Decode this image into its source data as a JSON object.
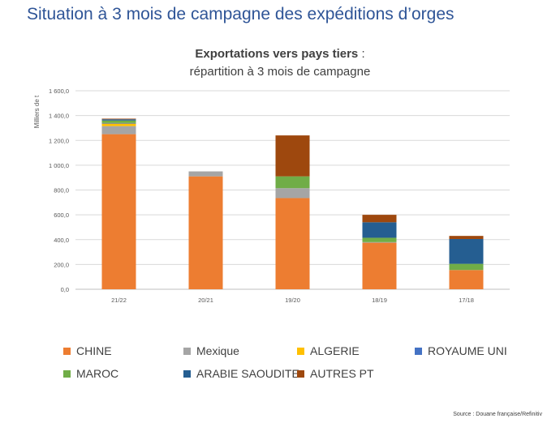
{
  "page_title": "Situation à 3 mois de campagne des expéditions d’orges",
  "source": "Source : Douane française/Refinitiv",
  "chart_data": {
    "type": "bar",
    "stacked": true,
    "title_bold": "Exportations vers pays tiers",
    "title_suffix": " :",
    "subtitle": "répartition à 3 mois de campagne",
    "ylabel": "Milliers de t",
    "xlabel": "",
    "ylim": [
      0,
      1600
    ],
    "yticks": [
      0,
      200,
      400,
      600,
      800,
      1000,
      1200,
      1400,
      1600
    ],
    "ytick_labels": [
      "0,0",
      "200,0",
      "400,0",
      "600,0",
      "800,0",
      "1 000,0",
      "1 200,0",
      "1 400,0",
      "1 600,0"
    ],
    "grid": true,
    "legend_position": "bottom",
    "categories": [
      "21/22",
      "20/21",
      "19/20",
      "18/19",
      "17/18"
    ],
    "series": [
      {
        "name": "CHINE",
        "color": "#ed7d31",
        "values": [
          1250,
          910,
          735,
          375,
          155
        ]
      },
      {
        "name": "Mexique",
        "color": "#a5a5a5",
        "values": [
          65,
          40,
          80,
          5,
          0
        ]
      },
      {
        "name": "ALGERIE",
        "color": "#ffc000",
        "values": [
          20,
          0,
          0,
          0,
          0
        ]
      },
      {
        "name": "ROYAUME UNI",
        "color": "#4472c4",
        "values": [
          5,
          0,
          0,
          0,
          0
        ]
      },
      {
        "name": "MAROC",
        "color": "#70ad47",
        "values": [
          20,
          0,
          95,
          35,
          50
        ]
      },
      {
        "name": "ARABIE SAOUDITE",
        "color": "#255e91",
        "values": [
          10,
          0,
          0,
          125,
          200
        ]
      },
      {
        "name": "AUTRES PT",
        "color": "#9e480e",
        "values": [
          5,
          0,
          330,
          60,
          25
        ]
      }
    ]
  }
}
